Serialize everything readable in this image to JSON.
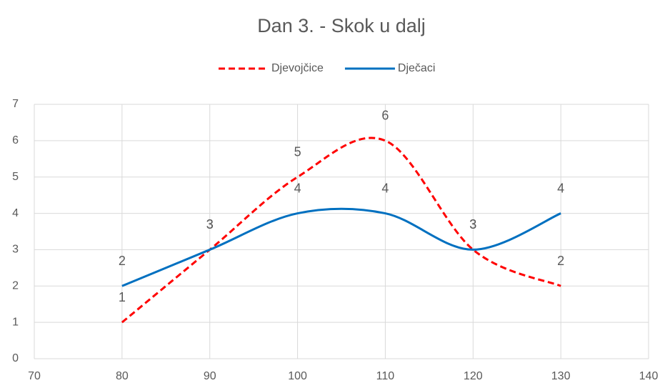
{
  "chart_data": {
    "type": "line",
    "title": "Dan 3. - Skok u dalj",
    "x": [
      80,
      90,
      100,
      110,
      120,
      130
    ],
    "series": [
      {
        "name": "Djevojčice",
        "color": "#ff0000",
        "dashed": true,
        "values": [
          1,
          3,
          5,
          6,
          3,
          2
        ]
      },
      {
        "name": "Dječaci",
        "color": "#0070c0",
        "dashed": false,
        "values": [
          2,
          3,
          4,
          4,
          3,
          4
        ]
      }
    ],
    "xlim": [
      70,
      140
    ],
    "xticks": [
      70,
      80,
      90,
      100,
      110,
      120,
      130,
      140
    ],
    "ylim": [
      0,
      7
    ],
    "yticks": [
      0,
      1,
      2,
      3,
      4,
      5,
      6,
      7
    ],
    "grid": true,
    "smooth": true,
    "legend": "top",
    "data_labels": true
  }
}
